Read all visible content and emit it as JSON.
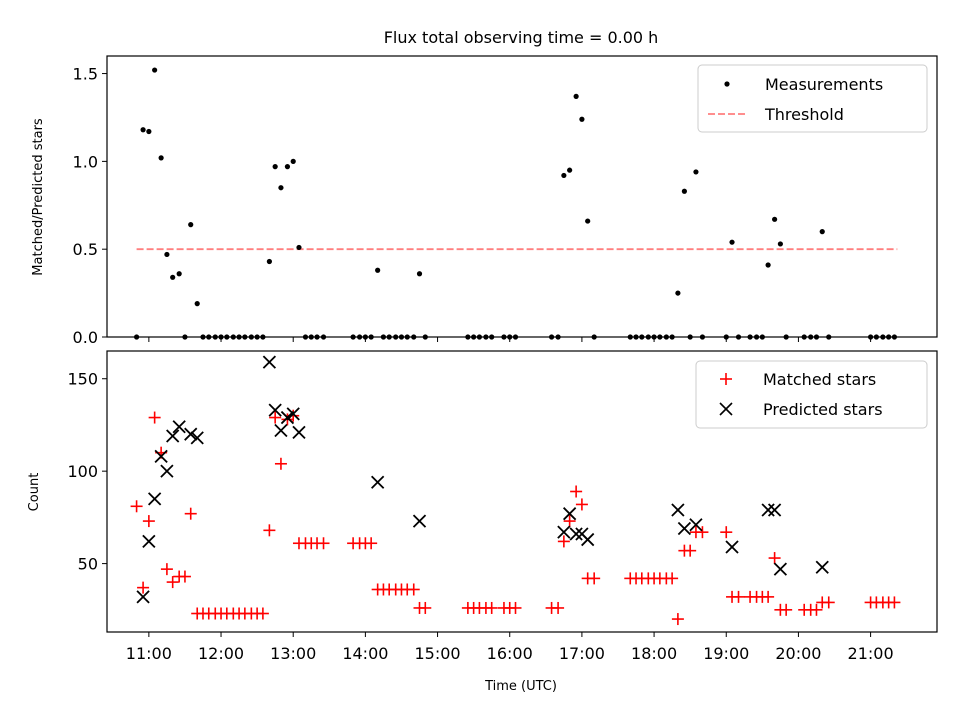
{
  "chart_data": [
    {
      "type": "scatter",
      "title": "Flux total observing time = 0.00 h",
      "xlabel": "",
      "ylabel": "Matched/Predicted stars",
      "xlim": [
        10.42,
        21.92
      ],
      "ylim": [
        0,
        1.6
      ],
      "yticks": [
        0.0,
        0.5,
        1.0,
        1.5
      ],
      "ytick_labels": [
        "0.0",
        "0.5",
        "1.0",
        "1.5"
      ],
      "grid": false,
      "legend_position": "top-right",
      "threshold": {
        "name": "Threshold",
        "value": 0.5,
        "x_range": [
          10.83,
          21.37
        ],
        "color": "#ff7f7f"
      },
      "series": [
        {
          "name": "Measurements",
          "color": "#000000",
          "marker": "dot",
          "x": [
            10.83,
            10.92,
            11.0,
            11.08,
            11.17,
            11.25,
            11.33,
            11.42,
            11.5,
            11.58,
            11.67,
            11.75,
            11.83,
            11.92,
            12.0,
            12.08,
            12.17,
            12.25,
            12.33,
            12.42,
            12.5,
            12.58,
            12.67,
            12.75,
            12.83,
            12.92,
            13.0,
            13.08,
            13.17,
            13.25,
            13.33,
            13.42,
            13.83,
            13.92,
            14.0,
            14.08,
            14.17,
            14.25,
            14.33,
            14.42,
            14.5,
            14.58,
            14.67,
            14.75,
            14.83,
            15.42,
            15.5,
            15.58,
            15.67,
            15.75,
            15.92,
            16.0,
            16.08,
            16.58,
            16.67,
            16.75,
            16.83,
            16.92,
            17.0,
            17.08,
            17.17,
            17.67,
            17.75,
            17.83,
            17.92,
            18.0,
            18.08,
            18.17,
            18.25,
            18.33,
            18.42,
            18.5,
            18.58,
            18.67,
            19.0,
            19.08,
            19.17,
            19.33,
            19.42,
            19.5,
            19.58,
            19.67,
            19.75,
            19.83,
            20.08,
            20.17,
            20.25,
            20.33,
            20.42,
            21.0,
            21.08,
            21.17,
            21.25,
            21.33
          ],
          "y": [
            0,
            1.18,
            1.17,
            1.52,
            1.02,
            0.47,
            0.34,
            0.36,
            0,
            0.64,
            0.19,
            0,
            0,
            0,
            0,
            0,
            0,
            0,
            0,
            0,
            0,
            0,
            0.43,
            0.97,
            0.85,
            0.97,
            1.0,
            0.51,
            0,
            0,
            0,
            0,
            0,
            0,
            0,
            0,
            0.38,
            0,
            0,
            0,
            0,
            0,
            0,
            0.36,
            0,
            0,
            0,
            0,
            0,
            0,
            0,
            0,
            0,
            0,
            0,
            0.92,
            0.95,
            1.37,
            1.24,
            0.66,
            0,
            0,
            0,
            0,
            0,
            0,
            0,
            0,
            0,
            0.25,
            0.83,
            0,
            0.94,
            0,
            0,
            0.54,
            0,
            0,
            0,
            0,
            0.41,
            0.67,
            0.53,
            0,
            0,
            0,
            0,
            0.6,
            0,
            0,
            0,
            0,
            0,
            0
          ]
        }
      ]
    },
    {
      "type": "scatter",
      "title": "",
      "xlabel": "Time (UTC)",
      "ylabel": "Count",
      "xlim": [
        10.42,
        21.92
      ],
      "ylim": [
        13,
        165
      ],
      "yticks": [
        50,
        100,
        150
      ],
      "ytick_labels": [
        "50",
        "100",
        "150"
      ],
      "xticks": [
        11,
        12,
        13,
        14,
        15,
        16,
        17,
        18,
        19,
        20,
        21
      ],
      "xtick_labels": [
        "11:00",
        "12:00",
        "13:00",
        "14:00",
        "15:00",
        "16:00",
        "17:00",
        "18:00",
        "19:00",
        "20:00",
        "21:00"
      ],
      "grid": false,
      "legend_position": "top-right",
      "series": [
        {
          "name": "Matched stars",
          "color": "#ff0000",
          "marker": "plus",
          "x": [
            10.83,
            10.92,
            11.0,
            11.08,
            11.17,
            11.25,
            11.33,
            11.42,
            11.5,
            11.58,
            11.67,
            11.75,
            11.83,
            11.92,
            12.0,
            12.08,
            12.17,
            12.25,
            12.33,
            12.42,
            12.5,
            12.58,
            12.67,
            12.75,
            12.83,
            12.92,
            13.0,
            13.08,
            13.17,
            13.25,
            13.33,
            13.42,
            13.83,
            13.92,
            14.0,
            14.08,
            14.17,
            14.25,
            14.33,
            14.42,
            14.5,
            14.58,
            14.67,
            14.75,
            14.83,
            15.42,
            15.5,
            15.58,
            15.67,
            15.75,
            15.92,
            16.0,
            16.08,
            16.58,
            16.67,
            16.75,
            16.83,
            16.92,
            17.0,
            17.08,
            17.17,
            17.67,
            17.75,
            17.83,
            17.92,
            18.0,
            18.08,
            18.17,
            18.25,
            18.33,
            18.42,
            18.5,
            18.58,
            18.67,
            19.0,
            19.08,
            19.17,
            19.33,
            19.42,
            19.5,
            19.58,
            19.67,
            19.75,
            19.83,
            20.08,
            20.17,
            20.25,
            20.33,
            20.42,
            21.0,
            21.08,
            21.17,
            21.25,
            21.33
          ],
          "y": [
            81,
            37,
            73,
            129,
            110,
            47,
            40,
            43,
            43,
            77,
            23,
            23,
            23,
            23,
            23,
            23,
            23,
            23,
            23,
            23,
            23,
            23,
            68,
            129,
            104,
            128,
            130,
            61,
            61,
            61,
            61,
            61,
            61,
            61,
            61,
            61,
            36,
            36,
            36,
            36,
            36,
            36,
            36,
            26,
            26,
            26,
            26,
            26,
            26,
            26,
            26,
            26,
            26,
            26,
            26,
            62,
            73,
            89,
            82,
            42,
            42,
            42,
            42,
            42,
            42,
            42,
            42,
            42,
            42,
            20,
            57,
            57,
            67,
            67,
            67,
            32,
            32,
            32,
            32,
            32,
            32,
            53,
            25,
            25,
            25,
            25,
            25,
            29,
            29,
            29,
            29,
            29,
            29,
            29
          ]
        },
        {
          "name": "Predicted stars",
          "color": "#000000",
          "marker": "x",
          "x": [
            10.92,
            11.0,
            11.08,
            11.17,
            11.25,
            11.33,
            11.42,
            11.58,
            11.67,
            12.67,
            12.75,
            12.83,
            12.92,
            13.0,
            13.08,
            14.17,
            14.75,
            16.75,
            16.83,
            16.92,
            17.0,
            17.08,
            18.33,
            18.42,
            18.58,
            19.08,
            19.58,
            19.67,
            19.75,
            20.33
          ],
          "y": [
            32,
            62,
            85,
            108,
            100,
            119,
            124,
            120,
            118,
            159,
            133,
            122,
            129,
            131,
            121,
            94,
            73,
            67,
            77,
            66,
            66,
            63,
            79,
            69,
            71,
            59,
            79,
            79,
            47,
            48
          ]
        }
      ]
    }
  ]
}
